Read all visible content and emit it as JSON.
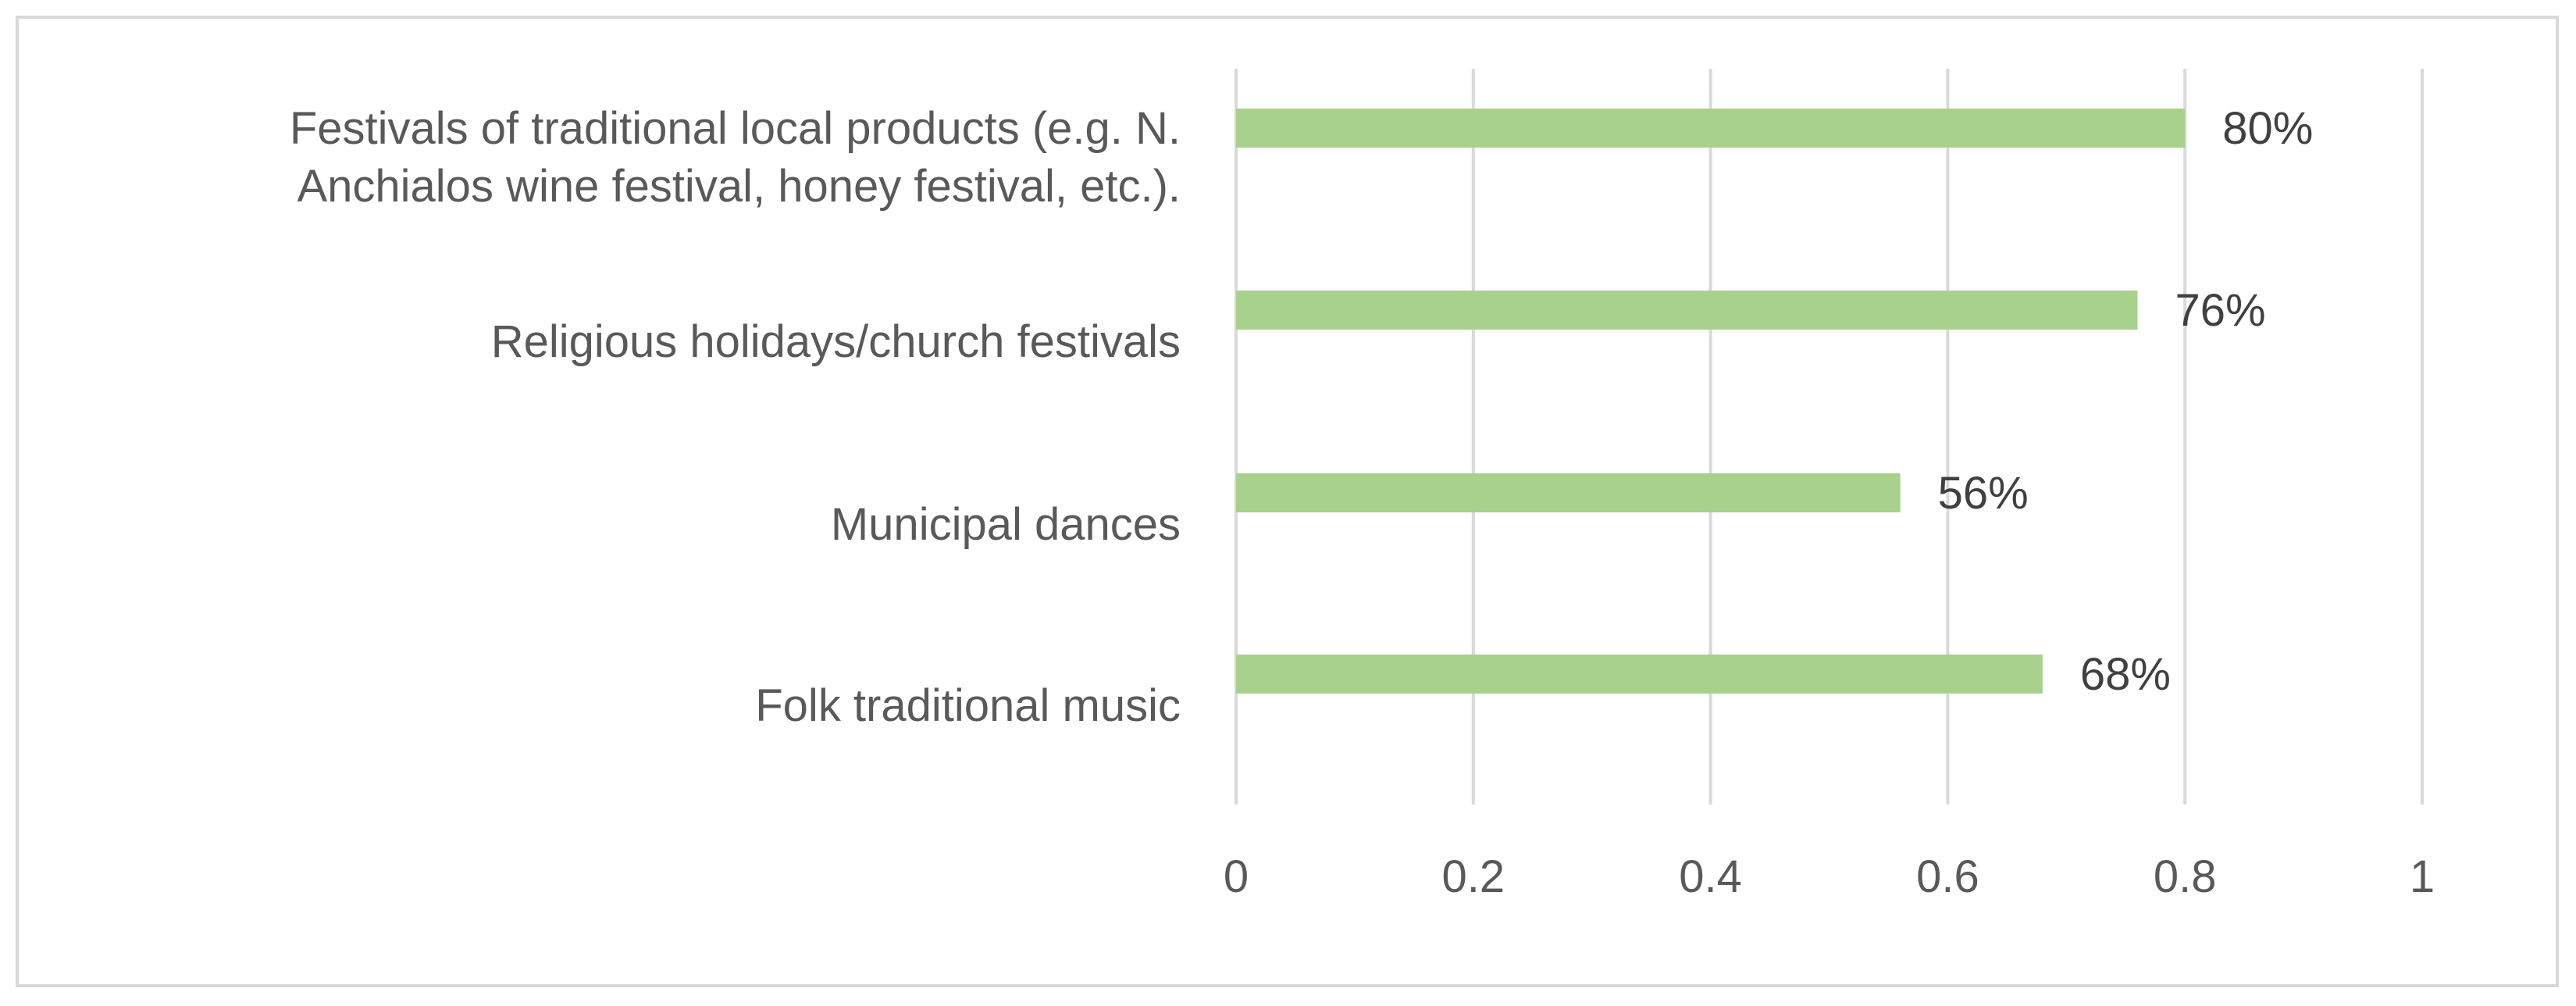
{
  "chart_data": {
    "type": "bar",
    "orientation": "horizontal",
    "categories": [
      "Festivals of traditional local products (e.g. N. Anchialos wine festival, honey festival, etc.).",
      "Religious holidays/church festivals",
      "Municipal dances",
      "Folk traditional music"
    ],
    "category_lines": [
      [
        "Festivals of traditional local products (e.g. N.",
        "Anchialos wine festival, honey festival, etc.)."
      ],
      [
        "Religious holidays/church festivals"
      ],
      [
        "Municipal dances"
      ],
      [
        "Folk traditional music"
      ]
    ],
    "values": [
      0.8,
      0.76,
      0.56,
      0.68
    ],
    "data_labels": [
      "80%",
      "76%",
      "56%",
      "68%"
    ],
    "xlim": [
      0,
      1
    ],
    "x_ticks": [
      0,
      0.2,
      0.4,
      0.6,
      0.8,
      1
    ],
    "x_tick_labels": [
      "0",
      "0.2",
      "0.4",
      "0.6",
      "0.8",
      "1"
    ],
    "grid": true,
    "legend": "none",
    "title": "",
    "xlabel": "",
    "ylabel": "",
    "colors": {
      "bar": "#a9d18e",
      "grid": "#d9d9d9",
      "border": "#d9d9d9",
      "text": "#595959"
    }
  }
}
